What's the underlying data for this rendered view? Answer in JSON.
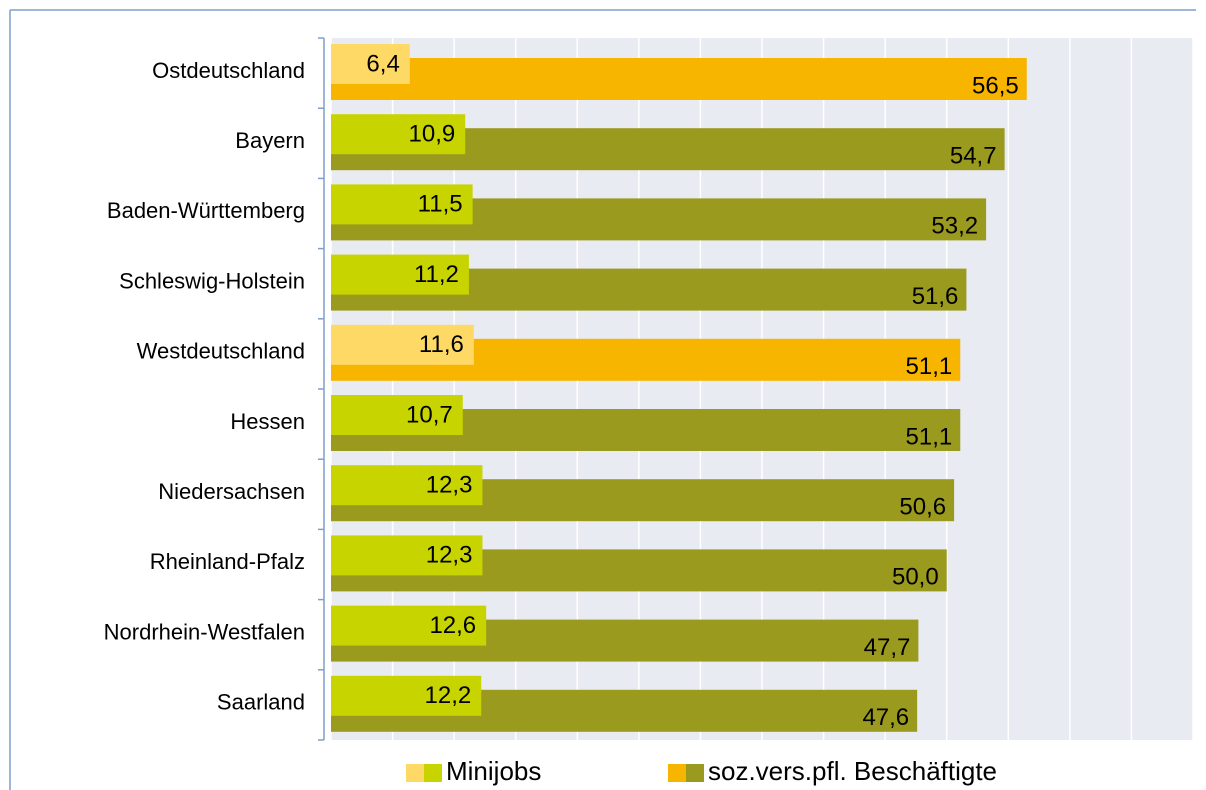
{
  "chart_data": {
    "type": "hbar",
    "categories": [
      "Ostdeutschland",
      "Bayern",
      "Baden-Württemberg",
      "Schleswig-Holstein",
      "Westdeutschland",
      "Hessen",
      "Niedersachsen",
      "Rheinland-Pfalz",
      "Nordrhein-Westfalen",
      "Saarland"
    ],
    "series": [
      {
        "name": "Minijobs",
        "colors": [
          "#ffd966",
          "#c8d400",
          "#c8d400",
          "#c8d400",
          "#ffd966",
          "#c8d400",
          "#c8d400",
          "#c8d400",
          "#c8d400",
          "#c8d400"
        ],
        "values": [
          6.4,
          10.9,
          11.5,
          11.2,
          11.6,
          10.7,
          12.3,
          12.3,
          12.6,
          12.2
        ],
        "value_labels": [
          "6,4",
          "10,9",
          "11,5",
          "11,2",
          "11,6",
          "10,7",
          "12,3",
          "12,3",
          "12,6",
          "12,2"
        ]
      },
      {
        "name": "soz.vers.pfl. Beschäftigte",
        "colors": [
          "#f7b500",
          "#9a9a1e",
          "#9a9a1e",
          "#9a9a1e",
          "#f7b500",
          "#9a9a1e",
          "#9a9a1e",
          "#9a9a1e",
          "#9a9a1e",
          "#9a9a1e"
        ],
        "values": [
          56.5,
          54.7,
          53.2,
          51.6,
          51.1,
          51.1,
          50.6,
          50.0,
          47.7,
          47.6
        ],
        "value_labels": [
          "56,5",
          "54,7",
          "53,2",
          "51,6",
          "51,1",
          "51,1",
          "50,6",
          "50,0",
          "47,7",
          "47,6"
        ]
      }
    ],
    "xlim": [
      0,
      70
    ],
    "xticks": [
      0,
      5,
      10,
      15,
      20,
      25,
      30,
      35,
      40,
      45,
      50,
      55,
      60,
      65,
      70
    ],
    "grid": true
  }
}
